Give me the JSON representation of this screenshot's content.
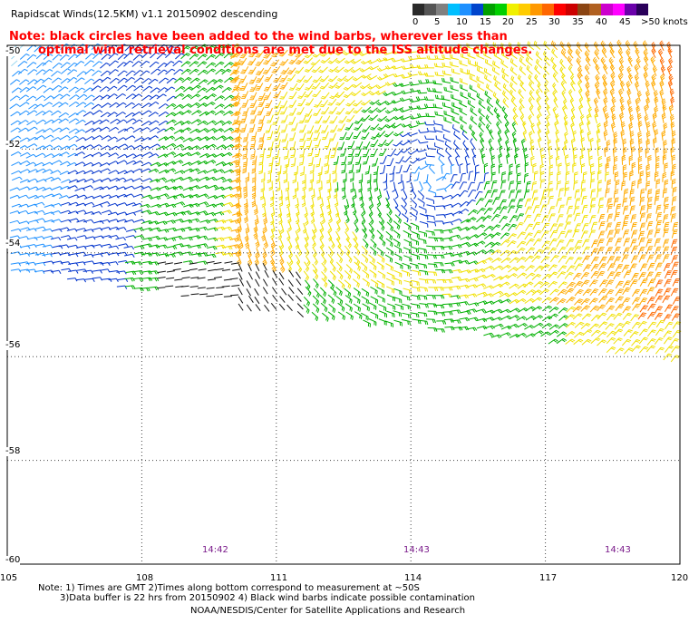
{
  "title": "Rapidscat Winds(12.5KM) v1.1 20150902 descending",
  "note_red": [
    "Note: black circles have been added to the wind barbs, wherever less than",
    "optimal wind retrieval conditions are met due to the ISS altitude changes."
  ],
  "legend": {
    "labels": [
      "0",
      "5",
      "10",
      "15",
      "20",
      "25",
      "30",
      "35",
      "40",
      "45",
      ">50 knots"
    ],
    "colors": [
      "#2a2a2a",
      "#555555",
      "#808080",
      "#00bfff",
      "#1e90ff",
      "#0044cc",
      "#00a000",
      "#00d000",
      "#f0f000",
      "#ffcc00",
      "#ff9900",
      "#ff6600",
      "#ff0000",
      "#cc0000",
      "#8b4513",
      "#b06020",
      "#cc00cc",
      "#ff00ff",
      "#6a00aa",
      "#2a005a"
    ]
  },
  "lat_labels": [
    "-50",
    "-52",
    "-54",
    "-56",
    "-58",
    "-60"
  ],
  "lon_labels": [
    "105",
    "108",
    "111",
    "114",
    "117",
    "120"
  ],
  "times": [
    "14:42",
    "14:43",
    "14:43"
  ],
  "footer": {
    "line1": "Note: 1) Times are GMT 2)Times along bottom correspond to measurement at ~50S",
    "line2": "3)Data buffer is 22 hrs from 20150902 4) Black wind barbs indicate possible contamination",
    "line3": "NOAA/NESDIS/Center for Satellite Applications and Research"
  },
  "map": {
    "lon_range": [
      105,
      120
    ],
    "lat_range": [
      -60,
      -50
    ],
    "gridlines": "dotted",
    "cyclone_center": {
      "lon": 114.5,
      "lat": -52.5
    }
  }
}
